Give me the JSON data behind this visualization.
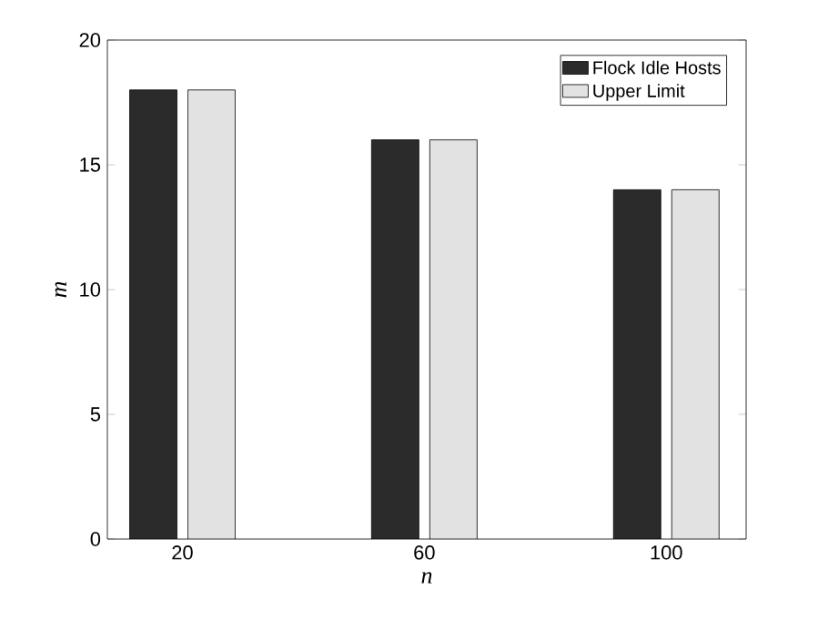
{
  "chart_data": {
    "type": "bar",
    "xlabel": "n",
    "ylabel": "m",
    "categories": [
      "20",
      "60",
      "100"
    ],
    "series": [
      {
        "name": "Flock Idle Hosts",
        "color": "#2b2b2b",
        "values": [
          18,
          16,
          14
        ]
      },
      {
        "name": "Upper Limit",
        "color": "#e2e2e2",
        "values": [
          18,
          16,
          14
        ]
      }
    ],
    "ylim": [
      0,
      20
    ],
    "yticks": [
      0,
      5,
      10,
      15,
      20
    ],
    "legend": "top right",
    "grid": false
  }
}
